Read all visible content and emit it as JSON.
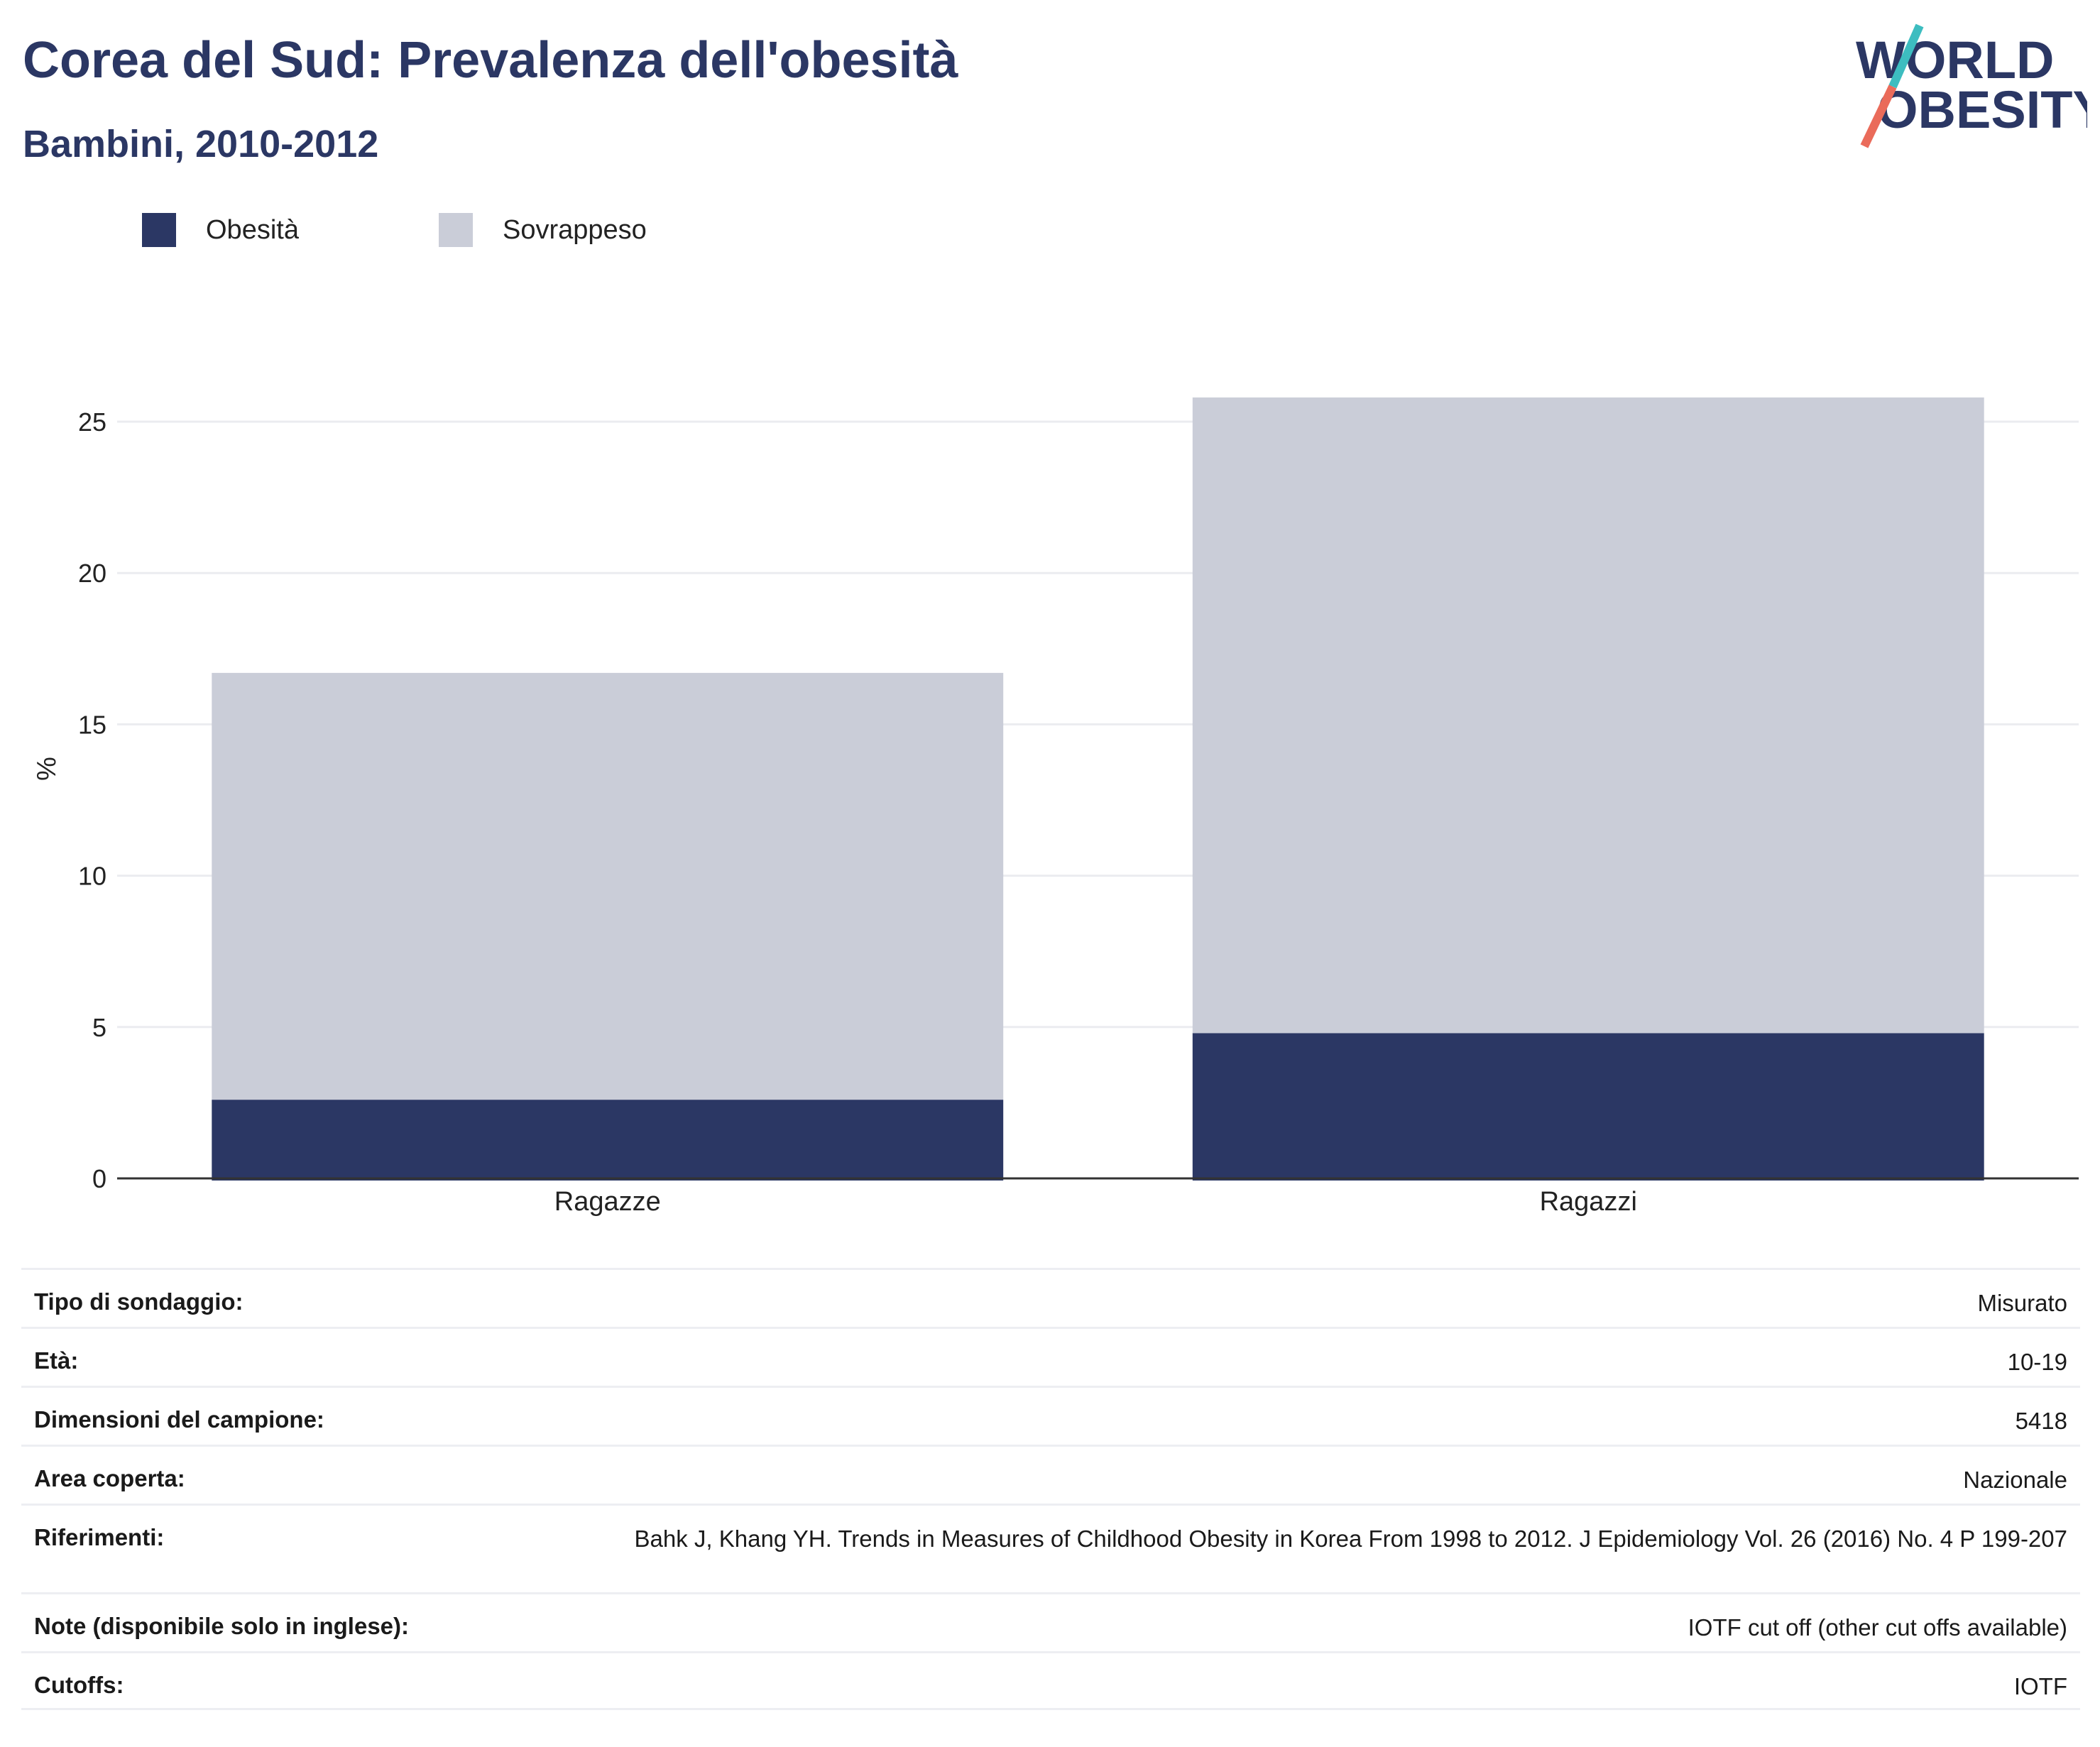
{
  "header": {
    "title": "Corea del Sud: Prevalenza dell'obesità",
    "subtitle": "Bambini, 2010-2012"
  },
  "logo": {
    "line1": "WORLD",
    "line2": "OBESITY"
  },
  "colors": {
    "obesity": "#2b3764",
    "overweight": "#cacdd8",
    "title": "#2b3764",
    "grid": "#ebecf0",
    "logo_teal": "#3dbdc0",
    "logo_coral": "#ea6b5a"
  },
  "chart_data": {
    "type": "bar",
    "stacked": true,
    "title": "",
    "xlabel": "",
    "ylabel": "%",
    "ylim": [
      0,
      26
    ],
    "yticks": [
      0,
      5,
      10,
      15,
      20,
      25
    ],
    "grid": true,
    "legend_position": "top-left",
    "categories": [
      "Ragazze",
      "Ragazzi"
    ],
    "series": [
      {
        "name": "Obesità",
        "values": [
          2.6,
          4.8
        ],
        "color": "#2b3764"
      },
      {
        "name": "Sovrappeso",
        "values": [
          14.1,
          21.0
        ],
        "color": "#cacdd8"
      }
    ]
  },
  "table": [
    {
      "label": "Tipo di sondaggio:",
      "value": "Misurato"
    },
    {
      "label": "Età:",
      "value": "10-19"
    },
    {
      "label": "Dimensioni del campione:",
      "value": "5418"
    },
    {
      "label": "Area coperta:",
      "value": "Nazionale"
    },
    {
      "label": "Riferimenti:",
      "value": "Bahk J, Khang YH. Trends in Measures of Childhood Obesity in Korea From 1998 to 2012. J Epidemiology Vol. 26 (2016) No. 4 P 199-207"
    },
    {
      "label": "Note (disponibile solo in inglese):",
      "value": "IOTF cut off (other cut offs available)"
    },
    {
      "label": "Cutoffs:",
      "value": "IOTF"
    }
  ]
}
